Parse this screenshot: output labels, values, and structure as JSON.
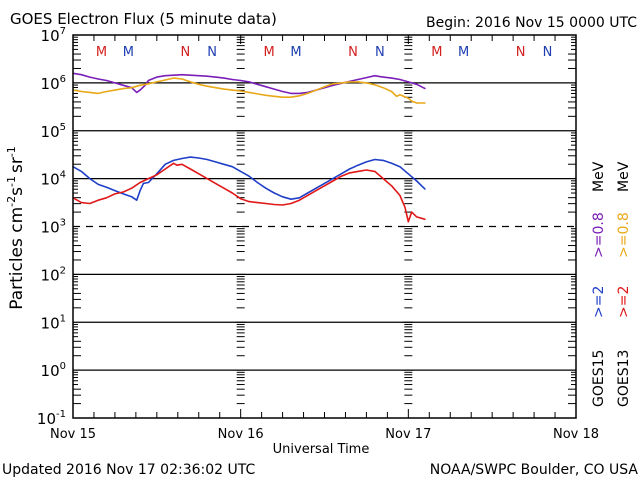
{
  "header": {
    "title": "GOES Electron Flux (5 minute data)",
    "begin": "Begin: 2016 Nov 15 0000 UTC"
  },
  "footer": {
    "updated": "Updated 2016 Nov 17 02:36:02 UTC",
    "credit": "NOAA/SWPC Boulder, CO USA"
  },
  "colors": {
    "goes15_high": "#1f3fc8",
    "goes13_high": "#e01818",
    "goes15_low": "#7a1fb8",
    "goes13_low": "#e8a818",
    "marker_red": "#d42020",
    "marker_blue": "#1f3fb0",
    "axis": "#000000"
  },
  "chart_data": {
    "type": "line",
    "title": "GOES Electron Flux (5 minute data)",
    "xlabel": "Universal Time",
    "ylabel": "Particles cm-2 s-1 sr-1",
    "ylabel_parts": {
      "main": "Particles cm",
      "exp1": "-2",
      "s": "s",
      "exp2": "-1",
      "sr": "sr",
      "exp3": "-1"
    },
    "yscale": "log",
    "ylim_exp": [
      -1,
      7
    ],
    "ytick_labels": [
      {
        "exp": 7,
        "base": "10",
        "sup": "7"
      },
      {
        "exp": 6,
        "base": "10",
        "sup": "6"
      },
      {
        "exp": 5,
        "base": "10",
        "sup": "5"
      },
      {
        "exp": 4,
        "base": "10",
        "sup": "4"
      },
      {
        "exp": 3,
        "base": "10",
        "sup": "3"
      },
      {
        "exp": 2,
        "base": "10",
        "sup": "2"
      },
      {
        "exp": 1,
        "base": "10",
        "sup": "1"
      },
      {
        "exp": 0,
        "base": "10",
        "sup": "0"
      },
      {
        "exp": -1,
        "base": "10",
        "sup": "-1"
      }
    ],
    "xlim_days": [
      0,
      3
    ],
    "xtick_labels": [
      {
        "day": 0,
        "label": "Nov 15"
      },
      {
        "day": 1,
        "label": "Nov 16"
      },
      {
        "day": 2,
        "label": "Nov 17"
      },
      {
        "day": 3,
        "label": "Nov 18"
      }
    ],
    "solid_gridlines_exp": [
      6,
      5,
      4,
      2,
      1,
      0
    ],
    "dashed_threshold_exp": 3,
    "local_time_markers": [
      {
        "day": 0.17,
        "label": "M",
        "sat": "GOES13"
      },
      {
        "day": 0.33,
        "label": "M",
        "sat": "GOES15"
      },
      {
        "day": 0.67,
        "label": "N",
        "sat": "GOES13"
      },
      {
        "day": 0.83,
        "label": "N",
        "sat": "GOES15"
      },
      {
        "day": 1.17,
        "label": "M",
        "sat": "GOES13"
      },
      {
        "day": 1.33,
        "label": "M",
        "sat": "GOES15"
      },
      {
        "day": 1.67,
        "label": "N",
        "sat": "GOES13"
      },
      {
        "day": 1.83,
        "label": "N",
        "sat": "GOES15"
      },
      {
        "day": 2.17,
        "label": "M",
        "sat": "GOES13"
      },
      {
        "day": 2.33,
        "label": "M",
        "sat": "GOES15"
      },
      {
        "day": 2.67,
        "label": "N",
        "sat": "GOES13"
      },
      {
        "day": 2.83,
        "label": "N",
        "sat": "GOES15"
      }
    ],
    "legend": {
      "placement": "right-vertical",
      "columns": [
        {
          "sat": "GOES15",
          "high": ">=2",
          "low": ">=0.8",
          "unit": "MeV",
          "high_color_key": "goes15_high",
          "low_color_key": "goes15_low"
        },
        {
          "sat": "GOES13",
          "high": ">=2",
          "low": ">=0.8",
          "unit": "MeV",
          "high_color_key": "goes13_high",
          "low_color_key": "goes13_low"
        }
      ]
    },
    "series": [
      {
        "name": "GOES15 >=0.8 MeV",
        "color_key": "goes15_low",
        "x_days": [
          0.0,
          0.05,
          0.1,
          0.15,
          0.2,
          0.25,
          0.3,
          0.35,
          0.38,
          0.4,
          0.43,
          0.45,
          0.5,
          0.55,
          0.6,
          0.65,
          0.7,
          0.75,
          0.8,
          0.85,
          0.9,
          0.95,
          1.0,
          1.05,
          1.1,
          1.15,
          1.2,
          1.25,
          1.3,
          1.35,
          1.4,
          1.45,
          1.5,
          1.55,
          1.6,
          1.65,
          1.7,
          1.75,
          1.8,
          1.85,
          1.9,
          1.95,
          2.0,
          2.05,
          2.1
        ],
        "y_log10": [
          6.2,
          6.17,
          6.12,
          6.08,
          6.05,
          6.0,
          5.95,
          5.9,
          5.8,
          5.85,
          5.95,
          6.05,
          6.12,
          6.15,
          6.16,
          6.17,
          6.16,
          6.15,
          6.14,
          6.12,
          6.1,
          6.07,
          6.05,
          6.02,
          5.97,
          5.92,
          5.87,
          5.82,
          5.78,
          5.78,
          5.8,
          5.85,
          5.9,
          5.95,
          5.99,
          6.03,
          6.07,
          6.11,
          6.15,
          6.12,
          6.1,
          6.07,
          6.02,
          5.97,
          5.88
        ]
      },
      {
        "name": "GOES13 >=0.8 MeV",
        "color_key": "goes13_low",
        "x_days": [
          0.0,
          0.05,
          0.1,
          0.15,
          0.2,
          0.25,
          0.3,
          0.35,
          0.4,
          0.45,
          0.5,
          0.55,
          0.6,
          0.65,
          0.7,
          0.75,
          0.8,
          0.85,
          0.9,
          0.95,
          1.0,
          1.05,
          1.1,
          1.15,
          1.2,
          1.25,
          1.3,
          1.35,
          1.4,
          1.45,
          1.5,
          1.55,
          1.6,
          1.65,
          1.7,
          1.75,
          1.8,
          1.85,
          1.9,
          1.93,
          1.95,
          2.0,
          2.02,
          2.05,
          2.1
        ],
        "y_log10": [
          5.85,
          5.82,
          5.8,
          5.78,
          5.82,
          5.85,
          5.88,
          5.9,
          5.95,
          5.98,
          6.02,
          6.06,
          6.1,
          6.08,
          6.02,
          5.97,
          5.93,
          5.9,
          5.87,
          5.85,
          5.83,
          5.8,
          5.77,
          5.74,
          5.72,
          5.7,
          5.7,
          5.73,
          5.78,
          5.85,
          5.92,
          5.98,
          6.0,
          6.02,
          6.02,
          6.0,
          5.96,
          5.9,
          5.82,
          5.72,
          5.75,
          5.68,
          5.62,
          5.58,
          5.58
        ]
      },
      {
        "name": "GOES15 >=2 MeV",
        "color_key": "goes15_high",
        "x_days": [
          0.0,
          0.05,
          0.1,
          0.15,
          0.2,
          0.25,
          0.3,
          0.35,
          0.38,
          0.4,
          0.42,
          0.45,
          0.5,
          0.55,
          0.6,
          0.65,
          0.7,
          0.75,
          0.8,
          0.85,
          0.9,
          0.95,
          1.0,
          1.05,
          1.1,
          1.15,
          1.2,
          1.25,
          1.3,
          1.35,
          1.4,
          1.45,
          1.5,
          1.55,
          1.6,
          1.65,
          1.7,
          1.75,
          1.8,
          1.85,
          1.9,
          1.95,
          2.0,
          2.05,
          2.1
        ],
        "y_log10": [
          4.25,
          4.15,
          4.0,
          3.88,
          3.82,
          3.75,
          3.68,
          3.62,
          3.55,
          3.75,
          3.9,
          3.92,
          4.1,
          4.3,
          4.38,
          4.42,
          4.45,
          4.43,
          4.4,
          4.35,
          4.3,
          4.25,
          4.15,
          4.05,
          3.92,
          3.8,
          3.7,
          3.62,
          3.57,
          3.6,
          3.7,
          3.8,
          3.9,
          4.0,
          4.1,
          4.2,
          4.28,
          4.35,
          4.4,
          4.38,
          4.32,
          4.25,
          4.1,
          3.95,
          3.78
        ]
      },
      {
        "name": "GOES13 >=2 MeV",
        "color_key": "goes13_high",
        "x_days": [
          0.0,
          0.05,
          0.1,
          0.15,
          0.2,
          0.25,
          0.3,
          0.35,
          0.4,
          0.45,
          0.5,
          0.55,
          0.6,
          0.62,
          0.65,
          0.7,
          0.75,
          0.8,
          0.85,
          0.9,
          0.95,
          1.0,
          1.05,
          1.1,
          1.15,
          1.2,
          1.25,
          1.3,
          1.35,
          1.4,
          1.45,
          1.5,
          1.55,
          1.6,
          1.65,
          1.7,
          1.75,
          1.8,
          1.85,
          1.9,
          1.95,
          1.98,
          2.0,
          2.02,
          2.05,
          2.1
        ],
        "y_log10": [
          3.6,
          3.5,
          3.48,
          3.55,
          3.6,
          3.68,
          3.72,
          3.8,
          3.92,
          4.0,
          4.08,
          4.2,
          4.32,
          4.28,
          4.3,
          4.2,
          4.1,
          4.0,
          3.9,
          3.8,
          3.7,
          3.58,
          3.52,
          3.5,
          3.48,
          3.46,
          3.45,
          3.48,
          3.55,
          3.65,
          3.75,
          3.85,
          3.95,
          4.05,
          4.12,
          4.15,
          4.18,
          4.15,
          4.0,
          3.85,
          3.65,
          3.4,
          3.1,
          3.3,
          3.2,
          3.15
        ]
      }
    ]
  }
}
